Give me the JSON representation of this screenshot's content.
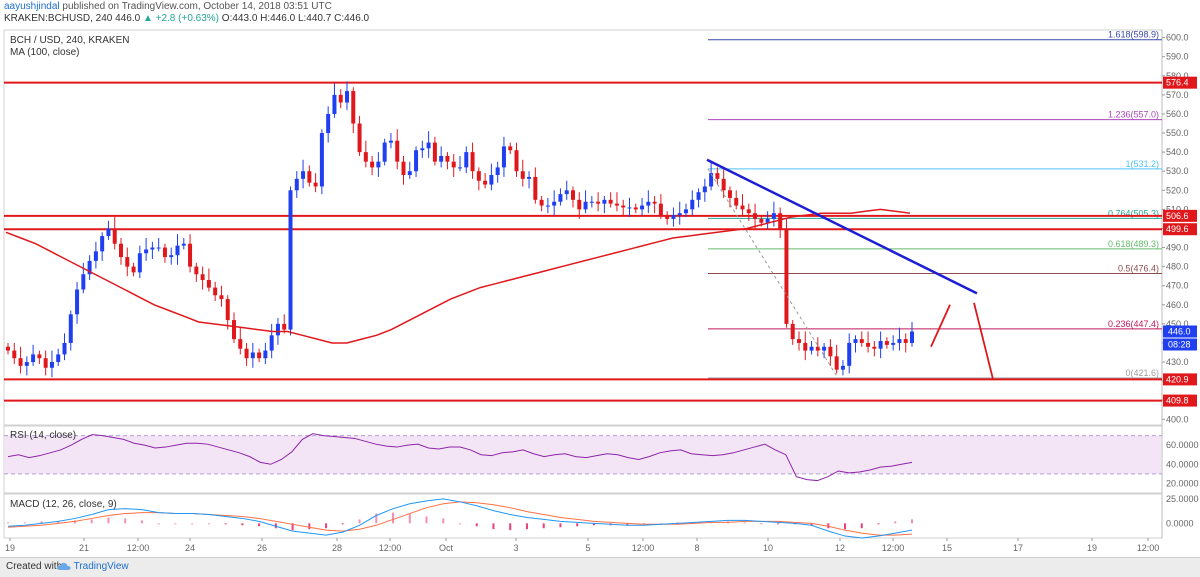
{
  "header": {
    "publisher_user": "aayushjindal",
    "publisher_rest": " published on TradingView.com, October 14, 2018 03:51 UTC",
    "quote_symbol": "KRAKEN:BCHUSD, 240  446.0 ",
    "quote_change": "▲ +2.8 (+0.63%)",
    "quote_ohlc": " O:443.0  H:446.0  L:440.7  C:446.0"
  },
  "footer": {
    "created_with": "Created with",
    "brand": "TradingView"
  },
  "colors": {
    "up": "#1f3ff0",
    "down": "#e0181c",
    "ma": "#e0181c",
    "trendline": "#1d1dd4",
    "level": "#e0181c",
    "rsi": "#8e24aa",
    "macd": "#2196f3",
    "signal": "#ff7043"
  },
  "chart_data": [
    {
      "type": "candlestick",
      "title": "BCH / USD, 240, KRAKEN",
      "indicator_label": "MA (100, close)",
      "ylim": [
        397,
        604
      ],
      "y_ticks": [
        400,
        410,
        420,
        430,
        440,
        450,
        460,
        470,
        480,
        490,
        500,
        510,
        520,
        530,
        540,
        550,
        560,
        570,
        580,
        590,
        600
      ],
      "x_ticks": [
        "19",
        "21",
        "12:00",
        "24",
        "26",
        "28",
        "12:00",
        "Oct",
        "3",
        "5",
        "12:00",
        "8",
        "10",
        "12",
        "12:00",
        "15",
        "17",
        "19",
        "12:00"
      ],
      "last_price": "446.0",
      "countdown": "08:28",
      "horizontal_levels": [
        {
          "label": "576.4",
          "value": 576.4
        },
        {
          "label": "506.6",
          "value": 506.6
        },
        {
          "label": "499.6",
          "value": 499.6
        },
        {
          "label": "420.9",
          "value": 420.9
        },
        {
          "label": "409.8",
          "value": 409.8
        }
      ],
      "fibonacci": [
        {
          "label": "1.618(598.9)",
          "value": 598.9
        },
        {
          "label": "1.236(557.0)",
          "value": 557.0
        },
        {
          "label": "1(531.2)",
          "value": 531.2
        },
        {
          "label": "0.764(505.3)",
          "value": 505.3
        },
        {
          "label": "0.618(489.3)",
          "value": 489.3
        },
        {
          "label": "0.5(476.4)",
          "value": 476.4
        },
        {
          "label": "0.236(447.4)",
          "value": 447.4
        },
        {
          "label": "0(421.6)",
          "value": 421.6
        }
      ],
      "closes": [
        436,
        432,
        428,
        430,
        434,
        432,
        427,
        430,
        434,
        440,
        455,
        468,
        476,
        483,
        488,
        496,
        500,
        492,
        485,
        480,
        477,
        487,
        489,
        490,
        490,
        485,
        486,
        491,
        492,
        480,
        476,
        473,
        469,
        465,
        463,
        452,
        442,
        437,
        432,
        435,
        432,
        436,
        444,
        450,
        447,
        520,
        526,
        530,
        524,
        522,
        550,
        560,
        570,
        566,
        572,
        555,
        540,
        535,
        532,
        535,
        545,
        546,
        535,
        528,
        530,
        541,
        542,
        545,
        535,
        538,
        535,
        532,
        532,
        540,
        530,
        525,
        523,
        528,
        532,
        543,
        541,
        530,
        526,
        527,
        515,
        512,
        512,
        514,
        518,
        520,
        515,
        510,
        514,
        514,
        513,
        515,
        513,
        512,
        511,
        511,
        510,
        512,
        514,
        513,
        507,
        505,
        507,
        508,
        510,
        515,
        519,
        522,
        529,
        526,
        520,
        516,
        512,
        510,
        508,
        505,
        503,
        505,
        508,
        500,
        450,
        442,
        440,
        436,
        438,
        436,
        438,
        433,
        426,
        428,
        440,
        442,
        440,
        438,
        437,
        441,
        439,
        440,
        442,
        440,
        446
      ],
      "ma100": [
        498,
        495,
        492,
        488,
        484,
        480,
        476,
        472,
        468,
        464,
        460,
        457,
        454,
        451,
        450,
        449,
        448,
        447,
        446,
        446,
        444,
        442,
        440,
        440,
        442,
        444,
        447,
        451,
        455,
        459,
        463,
        466,
        469,
        471,
        473,
        475,
        477,
        479,
        481,
        483,
        485,
        487,
        489,
        491,
        493,
        495,
        496,
        497,
        498,
        499,
        500,
        502,
        504,
        506,
        507,
        508,
        508,
        508,
        509,
        510,
        509,
        508
      ],
      "resistance_trendline": [
        [
          531.2,
          536
        ],
        [
          466,
          466
        ]
      ],
      "projection_arrows": "drawn path: up toward 460, then down to 421"
    },
    {
      "type": "line",
      "title": "RSI (14, close)",
      "ylim": [
        10,
        80
      ],
      "y_ticks": [
        "20.0000",
        "40.0000",
        "60.0000"
      ],
      "band": [
        30,
        70
      ],
      "values": [
        48,
        50,
        47,
        49,
        52,
        55,
        60,
        66,
        71,
        70,
        68,
        66,
        62,
        60,
        57,
        58,
        60,
        62,
        62,
        61,
        58,
        55,
        52,
        48,
        42,
        40,
        45,
        53,
        66,
        72,
        70,
        69,
        68,
        67,
        64,
        61,
        59,
        58,
        60,
        61,
        57,
        56,
        58,
        58,
        55,
        50,
        49,
        52,
        53,
        55,
        51,
        48,
        50,
        51,
        48,
        47,
        49,
        51,
        50,
        47,
        45,
        48,
        52,
        54,
        55,
        51,
        50,
        49,
        50,
        52,
        55,
        58,
        61,
        55,
        50,
        27,
        24,
        23,
        27,
        33,
        31,
        32,
        34,
        37,
        38,
        40,
        42
      ]
    },
    {
      "type": "line",
      "title": "MACD (12, 26, close, 9)",
      "ylim": [
        -15,
        30
      ],
      "y_ticks": [
        "0.0000",
        "25.0000"
      ],
      "macd": [
        -3,
        -2,
        0,
        2,
        5,
        9,
        14,
        15,
        14,
        11,
        10,
        10,
        9,
        7,
        5,
        2,
        -3,
        -8,
        -10,
        -12,
        -9,
        -2,
        8,
        15,
        20,
        23,
        25,
        22,
        18,
        13,
        9,
        6,
        4,
        2,
        1,
        0,
        -1,
        -2,
        -2,
        -1,
        0,
        1,
        2,
        3,
        3,
        2,
        1,
        0,
        -2,
        -8,
        -13,
        -15,
        -13,
        -10,
        -7
      ],
      "signal": [
        -4,
        -3,
        -2,
        0,
        2,
        5,
        8,
        10,
        11,
        11,
        10,
        10,
        9,
        8,
        7,
        5,
        2,
        -1,
        -4,
        -7,
        -8,
        -6,
        -2,
        4,
        10,
        16,
        20,
        22,
        21,
        19,
        16,
        12,
        9,
        6,
        4,
        2,
        1,
        0,
        -1,
        -1,
        -1,
        0,
        1,
        1,
        2,
        2,
        2,
        1,
        0,
        -3,
        -7,
        -10,
        -12,
        -12,
        -11
      ]
    }
  ]
}
